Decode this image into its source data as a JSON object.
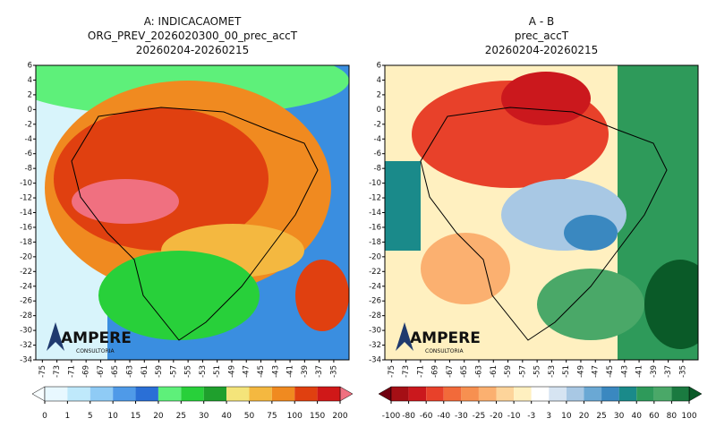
{
  "panels": [
    {
      "title_lines": [
        "A: INDICACAOMET",
        "ORG_PREV_2026020300_00_prec_accT",
        "20260204-20260215"
      ],
      "xlim": [
        -75.9,
        -32.9
      ],
      "ylim": [
        -34,
        6
      ],
      "xticks": [
        -75,
        -73,
        -71,
        -69,
        -67,
        -65,
        -63,
        -61,
        -59,
        -57,
        -55,
        -53,
        -51,
        -49,
        -47,
        -45,
        -43,
        -41,
        -39,
        -37,
        -35
      ],
      "yticks": [
        6,
        4,
        2,
        0,
        -2,
        -4,
        -6,
        -8,
        -10,
        -12,
        -14,
        -16,
        -18,
        -20,
        -22,
        -24,
        -26,
        -28,
        -30,
        -32,
        -34
      ],
      "logo": "AMPERE",
      "logo_sub": "CONSULTORIA",
      "colorbar": {
        "labels": [
          0,
          1,
          5,
          10,
          15,
          20,
          25,
          30,
          40,
          50,
          75,
          100,
          150,
          200
        ],
        "colors": [
          "#f8fdff",
          "#e8f8ff",
          "#bfe9fb",
          "#8fcbf5",
          "#4f9ae8",
          "#2a6fd6",
          "#5ef07a",
          "#28d03a",
          "#1fa02d",
          "#f4e47a",
          "#f4b840",
          "#f08a20",
          "#e04010",
          "#d01818",
          "#f07080"
        ]
      }
    },
    {
      "title_lines": [
        "A - B",
        "prec_accT",
        "20260204-20260215"
      ],
      "xlim": [
        -75.9,
        -32.9
      ],
      "ylim": [
        -34,
        6
      ],
      "xticks": [
        -75,
        -73,
        -71,
        -69,
        -67,
        -65,
        -63,
        -61,
        -59,
        -57,
        -55,
        -53,
        -51,
        -49,
        -47,
        -45,
        -43,
        -41,
        -39,
        -37,
        -35
      ],
      "yticks": [
        6,
        4,
        2,
        0,
        -2,
        -4,
        -6,
        -8,
        -10,
        -12,
        -14,
        -16,
        -18,
        -20,
        -22,
        -24,
        -26,
        -28,
        -30,
        -32,
        -34
      ],
      "logo": "AMPERE",
      "logo_sub": "CONSULTORIA",
      "colorbar": {
        "labels": [
          -100,
          -80,
          -60,
          -40,
          -30,
          -25,
          -20,
          -10,
          -3,
          3,
          10,
          20,
          25,
          30,
          40,
          60,
          80,
          100
        ],
        "colors": [
          "#700010",
          "#a50f15",
          "#cb181d",
          "#e8412a",
          "#f26a3a",
          "#f79050",
          "#fbb070",
          "#fdd49a",
          "#fff0c0",
          "#ffffff",
          "#d6e4f2",
          "#a8c8e4",
          "#6aa8d4",
          "#3a88c0",
          "#1a8a8a",
          "#2e9a5a",
          "#4aa868",
          "#1a7a40",
          "#0a5a28"
        ]
      }
    }
  ]
}
